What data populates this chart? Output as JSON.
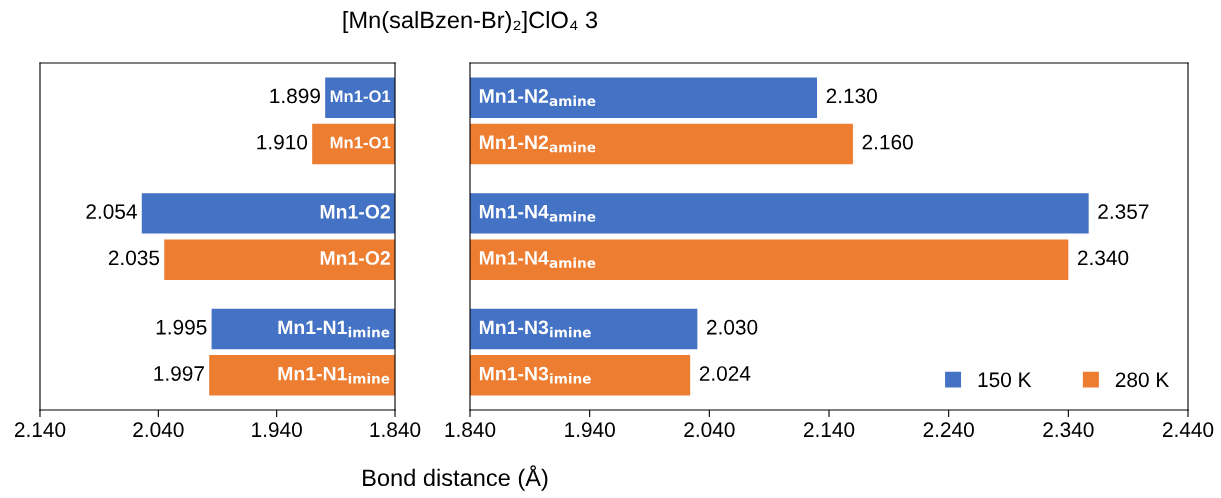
{
  "chart_data": [
    {
      "type": "bar",
      "orientation": "horizontal",
      "title": "[Mn(salBzen-Br)₂]ClO₄ 3",
      "xlabel": "Bond distance (Å)",
      "categories": [
        "Mn1-O1",
        "Mn1-O2",
        "Mn1-N1$_{imine}$"
      ],
      "series": [
        {
          "color": "#4472c4",
          "values": [
            1.899,
            2.054,
            1.995
          ],
          "value_labels": [
            "1.899",
            "2.054",
            "1.995"
          ]
        },
        {
          "color": "#ed7d31",
          "values": [
            1.91,
            2.035,
            1.997
          ],
          "value_labels": [
            "1.910",
            "2.035",
            "1.997"
          ]
        }
      ],
      "xlim": [
        2.14,
        1.84
      ],
      "xticks": [
        {
          "value": 2.14,
          "label": "2.140"
        },
        {
          "value": 2.04,
          "label": "2.040"
        },
        {
          "value": 1.94,
          "label": "1.940"
        },
        {
          "value": 1.84,
          "label": "1.840"
        }
      ],
      "tick_labels": "x",
      "grid": false,
      "legend": false
    },
    {
      "type": "bar",
      "orientation": "horizontal",
      "categories": [
        "Mn1-N2$_{amine}$",
        "Mn1-N4$_{amine}$",
        "Mn1-N3$_{imine}$"
      ],
      "series": [
        {
          "name": "150 K",
          "color": "#4472c4",
          "values": [
            2.13,
            2.357,
            2.03
          ],
          "value_labels": [
            "2.130",
            "2.357",
            "2.030"
          ]
        },
        {
          "name": "280 K",
          "color": "#ed7d31",
          "values": [
            2.16,
            2.34,
            2.024
          ],
          "value_labels": [
            "2.160",
            "2.340",
            "2.024"
          ]
        }
      ],
      "xlim": [
        1.84,
        2.44
      ],
      "xticks": [
        {
          "value": 1.84,
          "label": "1.840"
        },
        {
          "value": 1.94,
          "label": "1.940"
        },
        {
          "value": 2.04,
          "label": "2.040"
        },
        {
          "value": 2.14,
          "label": "2.140"
        },
        {
          "value": 2.24,
          "label": "2.240"
        },
        {
          "value": 2.34,
          "label": "2.340"
        },
        {
          "value": 2.44,
          "label": "2.440"
        }
      ],
      "tick_labels": "x",
      "grid": false,
      "legend": "bottom right"
    }
  ]
}
